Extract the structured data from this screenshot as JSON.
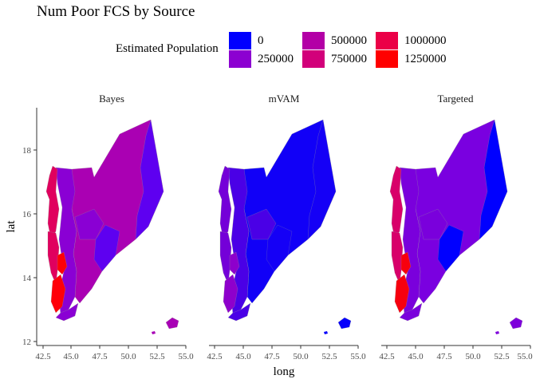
{
  "title": "Num Poor FCS by Source",
  "legend": {
    "title": "Estimated Population",
    "items": [
      {
        "label": "0",
        "color": "#0000ff"
      },
      {
        "label": "250000",
        "color": "#8c00d1"
      },
      {
        "label": "500000",
        "color": "#b300a6"
      },
      {
        "label": "750000",
        "color": "#d2007a"
      },
      {
        "label": "1000000",
        "color": "#eb0047"
      },
      {
        "label": "1250000",
        "color": "#ff0000"
      }
    ]
  },
  "facets": [
    "Bayes",
    "mVAM",
    "Targeted"
  ],
  "axes": {
    "xlabel": "long",
    "ylabel": "lat",
    "xticks": [
      "42.5",
      "45.0",
      "47.5",
      "50.0",
      "52.5",
      "55.0"
    ],
    "yticks": [
      "12",
      "14",
      "16",
      "18"
    ]
  },
  "map_colors": {
    "Bayes": {
      "main": "#aa00b3",
      "east": "#5e00f0",
      "west_mid": "#8a00d4",
      "coast1": "#e0005e",
      "coast2": "#ff0008",
      "island": "#a800b5"
    },
    "mVAM": {
      "main": "#1100f7",
      "east": "#1500f6",
      "west_mid": "#4a00e6",
      "coast1": "#7400d8",
      "coast2": "#8e00cc",
      "island": "#0600fb"
    },
    "Targeted": {
      "main": "#7a00e0",
      "east": "#0000ff",
      "west_mid": "#7a00dc",
      "coast1": "#d8006a",
      "coast2": "#f7000e",
      "island": "#7e00db"
    }
  }
}
